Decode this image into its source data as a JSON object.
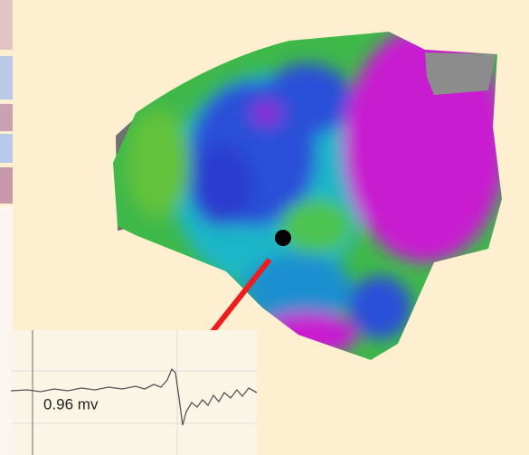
{
  "inset": {
    "label": "0.96 mv"
  }
}
